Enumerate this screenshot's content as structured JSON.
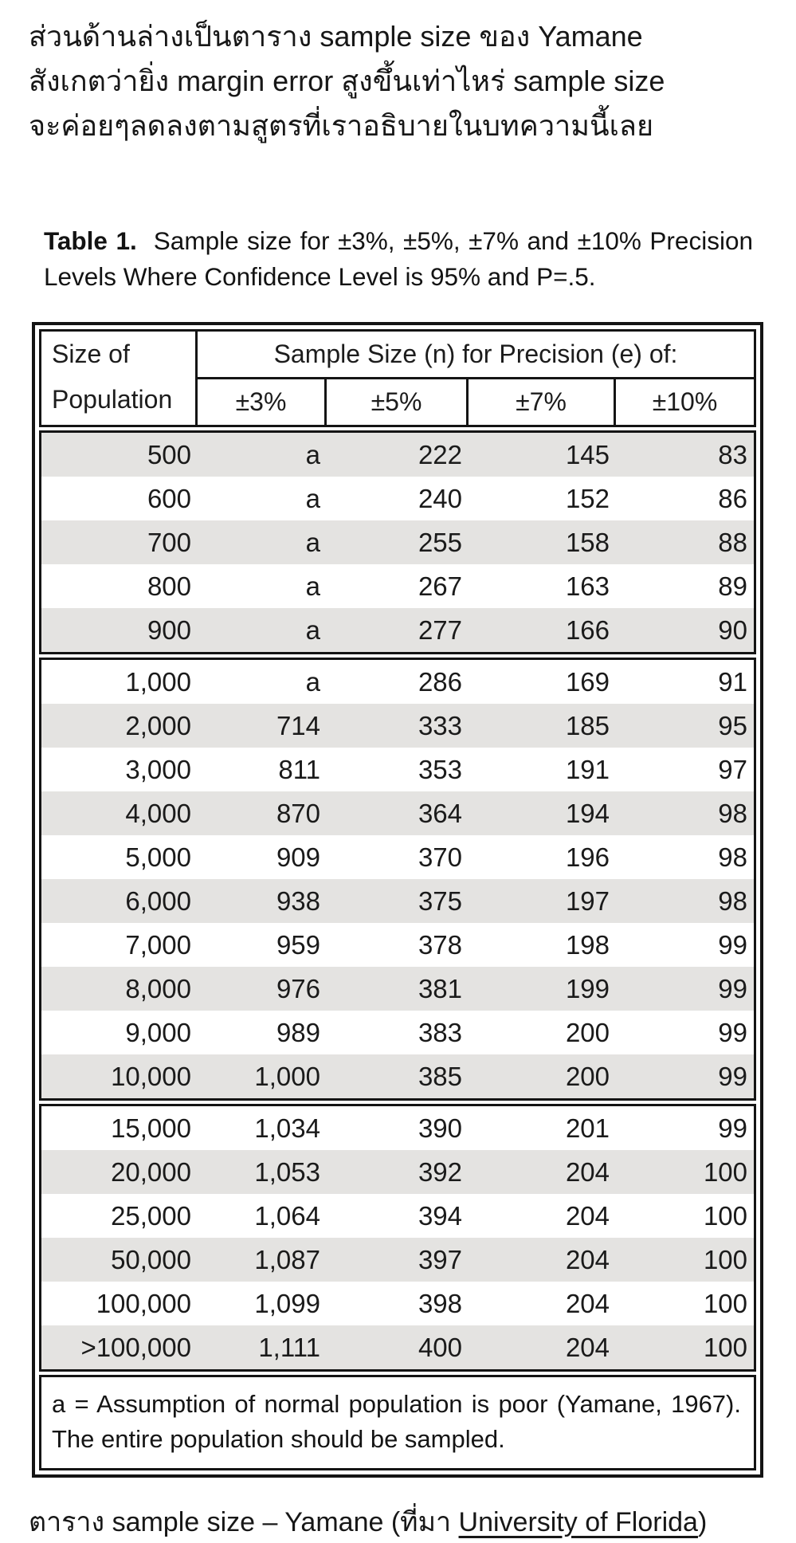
{
  "colors": {
    "row_shade": "#e4e3e1",
    "border": "#141414"
  },
  "intro": {
    "lines": [
      "ส่วนด้านล่างเป็นตาราง sample size ของ Yamane",
      "สังเกตว่ายิ่ง margin error สูงขึ้นเท่าไหร่ sample size",
      "จะค่อยๆลดลงตามสูตรที่เราอธิบายในบทความนี้เลย"
    ]
  },
  "table_title": {
    "label": "Table 1.",
    "text": "Sample size for ±3%, ±5%, ±7% and ±10% Precision Levels Where Confidence Level is 95% and P=.5."
  },
  "table": {
    "header": {
      "row_col_line1": "Size of",
      "row_col_line2": "Population",
      "span_label": "Sample Size (n) for Precision (e) of:",
      "columns": [
        "±3%",
        "±5%",
        "±7%",
        "±10%"
      ]
    },
    "groups": [
      [
        [
          "500",
          "a",
          "222",
          "145",
          "83"
        ],
        [
          "600",
          "a",
          "240",
          "152",
          "86"
        ],
        [
          "700",
          "a",
          "255",
          "158",
          "88"
        ],
        [
          "800",
          "a",
          "267",
          "163",
          "89"
        ],
        [
          "900",
          "a",
          "277",
          "166",
          "90"
        ]
      ],
      [
        [
          "1,000",
          "a",
          "286",
          "169",
          "91"
        ],
        [
          "2,000",
          "714",
          "333",
          "185",
          "95"
        ],
        [
          "3,000",
          "811",
          "353",
          "191",
          "97"
        ],
        [
          "4,000",
          "870",
          "364",
          "194",
          "98"
        ],
        [
          "5,000",
          "909",
          "370",
          "196",
          "98"
        ],
        [
          "6,000",
          "938",
          "375",
          "197",
          "98"
        ],
        [
          "7,000",
          "959",
          "378",
          "198",
          "99"
        ],
        [
          "8,000",
          "976",
          "381",
          "199",
          "99"
        ],
        [
          "9,000",
          "989",
          "383",
          "200",
          "99"
        ],
        [
          "10,000",
          "1,000",
          "385",
          "200",
          "99"
        ]
      ],
      [
        [
          "15,000",
          "1,034",
          "390",
          "201",
          "99"
        ],
        [
          "20,000",
          "1,053",
          "392",
          "204",
          "100"
        ],
        [
          "25,000",
          "1,064",
          "394",
          "204",
          "100"
        ],
        [
          "50,000",
          "1,087",
          "397",
          "204",
          "100"
        ],
        [
          "100,000",
          "1,099",
          "398",
          "204",
          "100"
        ],
        [
          ">100,000",
          "1,111",
          "400",
          "204",
          "100"
        ]
      ]
    ],
    "footnote": "a = Assumption of normal population is poor (Yamane, 1967).  The entire population should be sampled."
  },
  "caption": {
    "prefix": "ตาราง sample size – Yamane (ที่มา ",
    "link": "University of Florida",
    "suffix": ")"
  }
}
